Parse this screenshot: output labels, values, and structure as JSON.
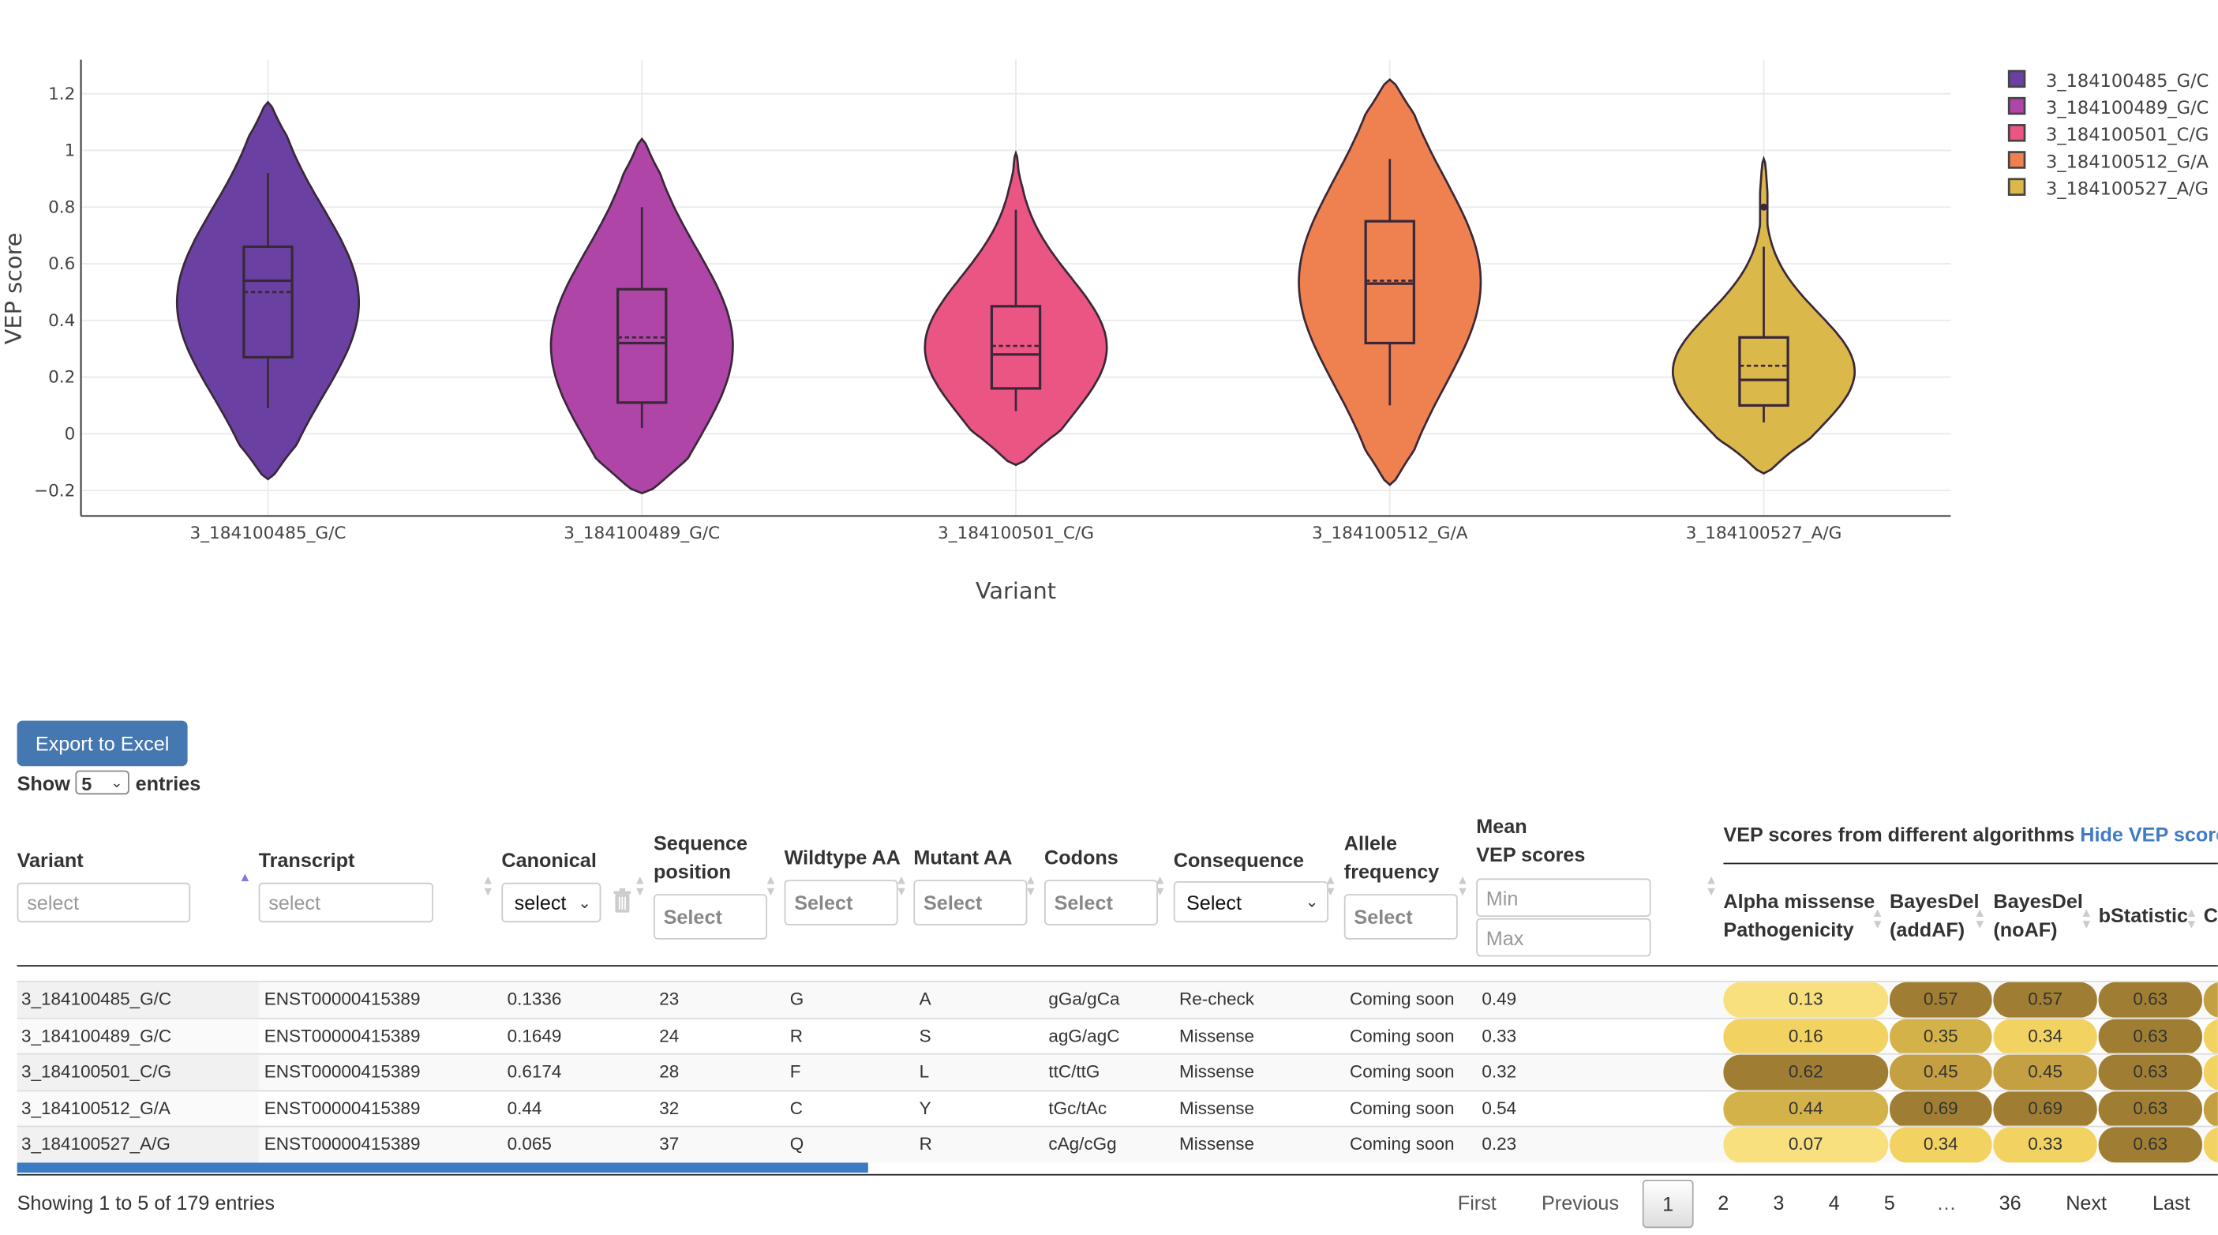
{
  "chart_data": {
    "type": "violin",
    "xlabel": "Variant",
    "ylabel": "VEP score",
    "ylim": [
      -0.29,
      1.32
    ],
    "yticks": [
      "−0.2",
      "0",
      "0.2",
      "0.4",
      "0.6",
      "0.8",
      "1",
      "1.2"
    ],
    "ytick_values": [
      -0.2,
      0,
      0.2,
      0.4,
      0.6,
      0.8,
      1,
      1.2
    ],
    "grid": true,
    "legend_position": "top-right",
    "categories": [
      "3_184100485_G/C",
      "3_184100489_G/C",
      "3_184100501_C/G",
      "3_184100512_G/A",
      "3_184100527_A/G"
    ],
    "series": [
      {
        "name": "3_184100485_G/C",
        "color": "#6a41a3",
        "kde_min": -0.16,
        "kde_max": 1.17,
        "whisker_low": 0.09,
        "q1": 0.27,
        "median": 0.54,
        "q3": 0.66,
        "whisker_high": 0.92,
        "mean": 0.5,
        "outliers": []
      },
      {
        "name": "3_184100489_G/C",
        "color": "#b045a8",
        "kde_min": -0.21,
        "kde_max": 1.04,
        "whisker_low": 0.02,
        "q1": 0.11,
        "median": 0.32,
        "q3": 0.51,
        "whisker_high": 0.8,
        "mean": 0.34,
        "outliers": []
      },
      {
        "name": "3_184100501_C/G",
        "color": "#ea5583",
        "kde_min": -0.11,
        "kde_max": 0.99,
        "whisker_low": 0.08,
        "q1": 0.16,
        "median": 0.28,
        "q3": 0.45,
        "whisker_high": 0.79,
        "mean": 0.31,
        "outliers": []
      },
      {
        "name": "3_184100512_G/A",
        "color": "#ef8050",
        "kde_min": -0.18,
        "kde_max": 1.25,
        "whisker_low": 0.1,
        "q1": 0.32,
        "median": 0.53,
        "q3": 0.75,
        "whisker_high": 0.97,
        "mean": 0.54,
        "outliers": []
      },
      {
        "name": "3_184100527_A/G",
        "color": "#dbb84a",
        "kde_min": -0.14,
        "kde_max": 0.97,
        "whisker_low": 0.04,
        "q1": 0.1,
        "median": 0.19,
        "q3": 0.34,
        "whisker_high": 0.66,
        "mean": 0.24,
        "outliers": [
          0.8
        ]
      }
    ]
  },
  "toolbar": {
    "export_label": "Export to Excel",
    "show_label": "Show",
    "show_value": "5",
    "entries_label": "entries"
  },
  "table": {
    "headers": {
      "variant": "Variant",
      "transcript": "Transcript",
      "canonical": "Canonical",
      "seq_pos_1": "Sequence",
      "seq_pos_2": "position",
      "wildtype": "Wildtype AA",
      "mutant": "Mutant AA",
      "codons": "Codons",
      "consequence": "Consequence",
      "allele_1": "Allele",
      "allele_2": "frequency",
      "mean_1": "Mean",
      "mean_2": "VEP scores",
      "vep_group": "VEP scores from different algorithms",
      "vep_toggle": "Hide VEP scores",
      "alpha_1": "Alpha missense",
      "alpha_2": "Pathogenicity",
      "bda_1": "BayesDel",
      "bda_2": "(addAF)",
      "bdn_1": "BayesDel",
      "bdn_2": "(noAF)",
      "bstat": "bStatistic",
      "next_col": "C"
    },
    "filters": {
      "variant_placeholder": "select",
      "transcript_placeholder": "select",
      "canonical_value": "select",
      "seq_placeholder": "Select",
      "wildtype_placeholder": "Select",
      "mutant_placeholder": "Select",
      "codons_placeholder": "Select",
      "consequence_value": "Select",
      "allele_placeholder": "Select",
      "min_placeholder": "Min",
      "max_placeholder": "Max"
    },
    "rows": [
      {
        "variant": "3_184100485_G/C",
        "transcript": "ENST00000415389",
        "canonical": "0.1336",
        "seq": "23",
        "wt": "G",
        "mut": "A",
        "codons": "gGa/gCa",
        "consequence": "Re-check",
        "allele": "Coming soon",
        "mean": "0.49",
        "alpha": "0.13",
        "bda": "0.57",
        "bdn": "0.57",
        "bstat": "0.63"
      },
      {
        "variant": "3_184100489_G/C",
        "transcript": "ENST00000415389",
        "canonical": "0.1649",
        "seq": "24",
        "wt": "R",
        "mut": "S",
        "codons": "agG/agC",
        "consequence": "Missense",
        "allele": "Coming soon",
        "mean": "0.33",
        "alpha": "0.16",
        "bda": "0.35",
        "bdn": "0.34",
        "bstat": "0.63"
      },
      {
        "variant": "3_184100501_C/G",
        "transcript": "ENST00000415389",
        "canonical": "0.6174",
        "seq": "28",
        "wt": "F",
        "mut": "L",
        "codons": "ttC/ttG",
        "consequence": "Missense",
        "allele": "Coming soon",
        "mean": "0.32",
        "alpha": "0.62",
        "bda": "0.45",
        "bdn": "0.45",
        "bstat": "0.63"
      },
      {
        "variant": "3_184100512_G/A",
        "transcript": "ENST00000415389",
        "canonical": "0.44",
        "seq": "32",
        "wt": "C",
        "mut": "Y",
        "codons": "tGc/tAc",
        "consequence": "Missense",
        "allele": "Coming soon",
        "mean": "0.54",
        "alpha": "0.44",
        "bda": "0.69",
        "bdn": "0.69",
        "bstat": "0.63"
      },
      {
        "variant": "3_184100527_A/G",
        "transcript": "ENST00000415389",
        "canonical": "0.065",
        "seq": "37",
        "wt": "Q",
        "mut": "R",
        "codons": "cAg/cGg",
        "consequence": "Missense",
        "allele": "Coming soon",
        "mean": "0.23",
        "alpha": "0.07",
        "bda": "0.34",
        "bdn": "0.33",
        "bstat": "0.63"
      }
    ],
    "partial_column_colors": [
      "#c4a042",
      "#f2d362",
      "#f2d362",
      "#c4a042",
      "#f2d362"
    ],
    "score_color_stops": [
      [
        0.0,
        "#f8e07f"
      ],
      [
        0.15,
        "#f2d362"
      ],
      [
        0.35,
        "#d4b24a"
      ],
      [
        0.45,
        "#c4a042"
      ],
      [
        0.56,
        "#9f7e33"
      ],
      [
        1.0,
        "#9f7e33"
      ]
    ]
  },
  "footer": {
    "info": "Showing 1 to 5 of 179 entries",
    "first": "First",
    "previous": "Previous",
    "pages": [
      "1",
      "2",
      "3",
      "4",
      "5"
    ],
    "ellipsis": "…",
    "last_page": "36",
    "next": "Next",
    "last": "Last",
    "current_page": "1"
  },
  "colors": {
    "accent": "#4577b0",
    "link": "#3f7bc6",
    "scrollbar": "#3b7bc4"
  }
}
